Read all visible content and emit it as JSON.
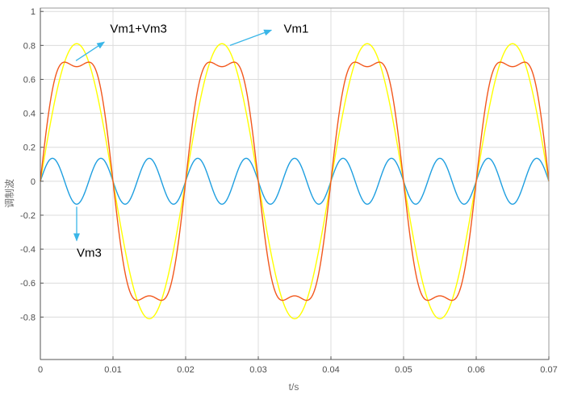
{
  "chart_data": {
    "type": "line",
    "xlabel": "t/s",
    "ylabel": "调制波",
    "xlim": [
      0,
      0.07
    ],
    "ylim": [
      -1.05,
      1.02
    ],
    "grid": true,
    "x_ticks": [
      "0",
      "0.01",
      "0.02",
      "0.03",
      "0.04",
      "0.05",
      "0.06",
      "0.07"
    ],
    "y_ticks": [
      "-0.8",
      "-0.6",
      "-0.4",
      "-0.2",
      "0",
      "0.2",
      "0.4",
      "0.6",
      "0.8",
      "1"
    ],
    "series": [
      {
        "key": "vm1",
        "type": "sine",
        "frequency_hz": 50,
        "amplitude": 0.81,
        "color": "#ffff00"
      },
      {
        "key": "vm3",
        "type": "sine",
        "frequency_hz": 150,
        "amplitude": 0.135,
        "color": "#1f9fe0"
      },
      {
        "key": "vm13",
        "type": "vm1_plus_vm3",
        "amplitude1": 0.81,
        "amplitude3": 0.135,
        "color": "#f2581d"
      }
    ],
    "annotations": [
      {
        "text": "Vm1+Vm3",
        "x": 0.0096,
        "y": 0.9,
        "arrow_from": [
          0.0049,
          0.71
        ],
        "arrow_to": [
          0.0088,
          0.82
        ]
      },
      {
        "text": "Vm1",
        "x": 0.0335,
        "y": 0.9,
        "arrow_from": [
          0.0261,
          0.8
        ],
        "arrow_to": [
          0.0318,
          0.89
        ]
      },
      {
        "text": "Vm3",
        "x": 0.005,
        "y": -0.42,
        "arrow_from": [
          0.005,
          -0.15
        ],
        "arrow_to": [
          0.005,
          -0.35
        ]
      }
    ],
    "annotation_color": "#3ab6e8"
  }
}
